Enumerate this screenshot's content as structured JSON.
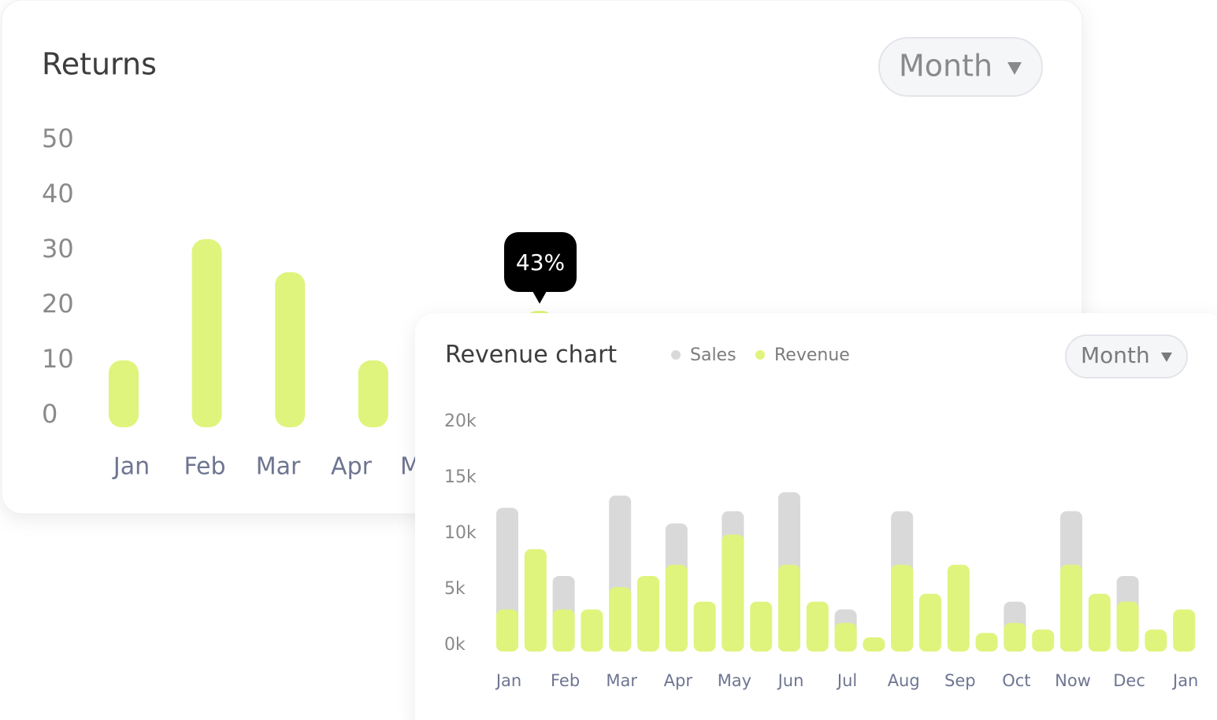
{
  "chart_data": [
    {
      "type": "bar",
      "title": "Returns",
      "control": "Month",
      "categories": [
        "Jan",
        "Feb",
        "Mar",
        "Apr",
        "May",
        null
      ],
      "values": [
        10,
        32,
        26,
        10,
        null,
        19
      ],
      "color": "#dff47c",
      "annotation": "43%",
      "ylim": [
        0,
        50
      ],
      "yticks": [
        0,
        10,
        20,
        30,
        40,
        50
      ]
    },
    {
      "type": "bar",
      "title": "Revenue chart",
      "control": "Month",
      "barmode": "overlay",
      "categories": [
        "Jan",
        null,
        "Feb",
        null,
        "Mar",
        null,
        "Apr",
        null,
        "May",
        null,
        "Jun",
        null,
        "Jul",
        null,
        "Aug",
        null,
        "Sep",
        null,
        "Oct",
        null,
        "Now",
        null,
        "Dec",
        null,
        "Jan"
      ],
      "series": [
        {
          "name": "Sales",
          "color": "#d9d9d9",
          "values": [
            12.3,
            null,
            6.2,
            null,
            13.4,
            null,
            10.9,
            null,
            12.0,
            null,
            13.7,
            null,
            3.2,
            null,
            12.0,
            null,
            null,
            null,
            3.9,
            null,
            12.0,
            null,
            6.2,
            null,
            null
          ]
        },
        {
          "name": "Revenue",
          "color": "#dff47c",
          "values": [
            3.2,
            8.6,
            3.2,
            3.2,
            5.2,
            6.2,
            7.2,
            3.9,
            9.9,
            3.9,
            7.2,
            3.9,
            2.0,
            0.7,
            7.2,
            4.6,
            7.2,
            1.1,
            2.0,
            1.4,
            7.2,
            4.6,
            3.9,
            1.4,
            3.2
          ]
        }
      ],
      "ylim": [
        0,
        20
      ],
      "yticks": [
        {
          "value": 0,
          "label": "0k"
        },
        {
          "value": 5,
          "label": "5k"
        },
        {
          "value": 10,
          "label": "10k"
        },
        {
          "value": 15,
          "label": "15k"
        },
        {
          "value": 20,
          "label": "20k"
        }
      ]
    }
  ]
}
